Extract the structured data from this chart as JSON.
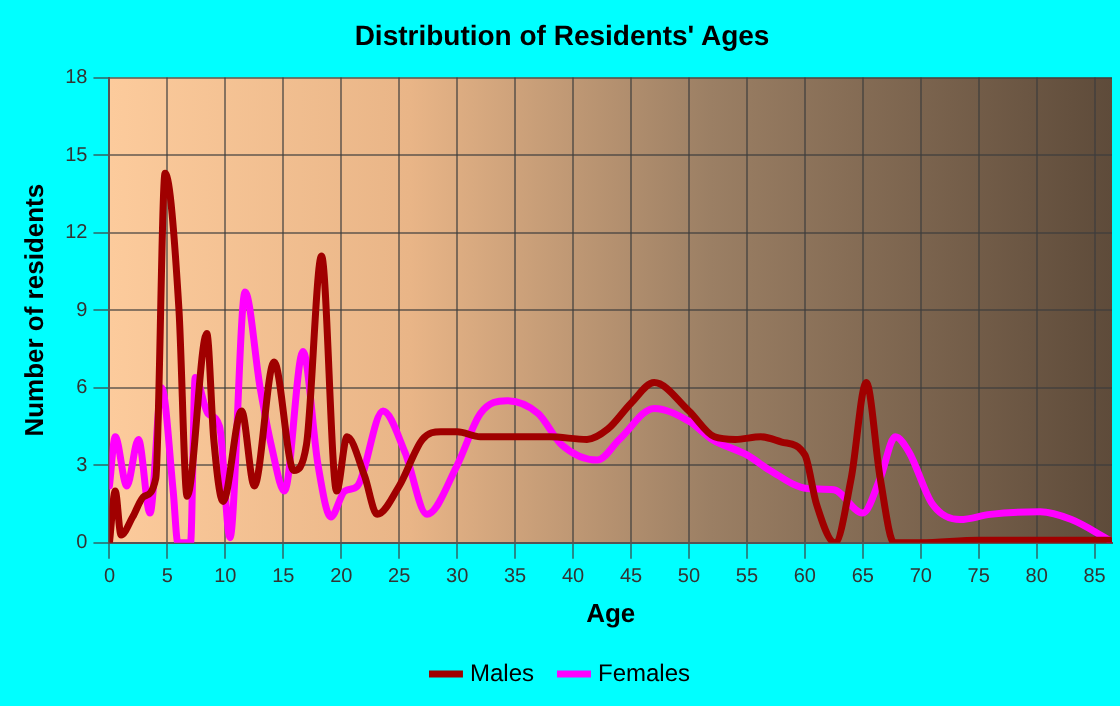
{
  "chart_data": {
    "type": "line",
    "title": "Distribution of Residents' Ages",
    "xlabel": "Age",
    "ylabel": "Number of residents",
    "xlim": [
      0,
      86.5
    ],
    "xticks": [
      0,
      5,
      10,
      15,
      20,
      25,
      30,
      35,
      40,
      45,
      50,
      55,
      60,
      65,
      70,
      75,
      80,
      85
    ],
    "ylim": [
      0,
      18
    ],
    "yticks": [
      0,
      3,
      6,
      9,
      12,
      15,
      18
    ],
    "grid": true,
    "legend": "bottom",
    "marker": "none",
    "line_style": "solid",
    "series": [
      {
        "name": "Males",
        "color": "#a00000",
        "x": [
          0,
          0.5,
          1,
          2,
          3,
          4,
          4.8,
          6,
          6.7,
          8.4,
          9,
          9.8,
          11.4,
          12.5,
          14.2,
          15.9,
          17,
          18.3,
          19.6,
          20.5,
          22,
          23.1,
          25,
          27,
          28.6,
          30,
          32,
          35,
          38,
          41.2,
          43,
          45,
          47,
          50,
          52.2,
          54,
          56.2,
          58,
          60,
          61,
          62.6,
          64,
          65.3,
          66.5,
          67.7,
          70,
          75,
          80,
          86.3
        ],
        "values": [
          0,
          2,
          0.3,
          1,
          1.8,
          2.5,
          14.3,
          9,
          1.8,
          8.1,
          4,
          1.6,
          5.1,
          2.2,
          7,
          2.8,
          3.8,
          11.1,
          2,
          4.1,
          2.6,
          1.1,
          2.2,
          4,
          4.3,
          4.3,
          4.1,
          4.1,
          4.1,
          4,
          4.4,
          5.4,
          6.2,
          5.1,
          4.1,
          4,
          4.1,
          3.9,
          3.4,
          1.5,
          0,
          2.5,
          6.2,
          2.5,
          0,
          0,
          0.1,
          0.1,
          0.1
        ]
      },
      {
        "name": "Females",
        "color": "#ff00ff",
        "x": [
          0,
          0.5,
          1.5,
          2.5,
          3.5,
          4.5,
          5.5,
          5.9,
          7,
          7.4,
          8.5,
          9.5,
          10.4,
          11.7,
          13,
          14,
          15.1,
          16.7,
          18,
          19.1,
          20.3,
          21.4,
          23.6,
          25.5,
          27.4,
          30,
          32,
          34.3,
          37,
          39,
          42.1,
          44,
          47,
          50,
          52,
          55,
          57,
          60.2,
          62.5,
          65,
          66.5,
          67.8,
          69,
          71,
          73.4,
          76,
          80.3,
          83,
          86.3
        ],
        "values": [
          2.2,
          4.1,
          2.2,
          4,
          1.15,
          6,
          2,
          0,
          0,
          6.4,
          5,
          4.5,
          0.2,
          9.7,
          6,
          3.7,
          2,
          7.4,
          3,
          1,
          2,
          2.2,
          5.1,
          3.5,
          1.1,
          3,
          5,
          5.5,
          5,
          3.8,
          3.2,
          4,
          5.2,
          4.7,
          4,
          3.4,
          2.8,
          2.1,
          2.05,
          1.15,
          2.5,
          4.1,
          3.5,
          1.5,
          0.9,
          1.1,
          1.2,
          0.9,
          0.1
        ]
      }
    ]
  }
}
